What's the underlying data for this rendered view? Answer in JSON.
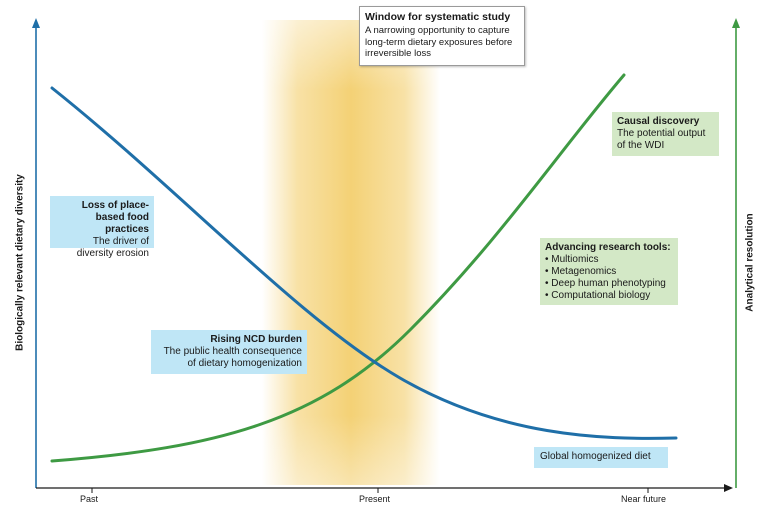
{
  "axes": {
    "y_left_label": "Biologically relevant dietary diversity",
    "y_right_label": "Analytical resolution",
    "x_ticks": [
      "Past",
      "Present",
      "Near future"
    ]
  },
  "colors": {
    "blue_curve": "#1f6fa8",
    "green_curve": "#3e9a43",
    "window_band": "#f2c95d",
    "blue_box": "#bfe6f6",
    "green_box": "#d3e8c6"
  },
  "callout": {
    "title": "Window for systematic study",
    "text": "A narrowing opportunity to capture long-term dietary exposures before irreversible loss"
  },
  "boxes": {
    "loss": {
      "title": "Loss of place-based food practices",
      "text": "The driver of diversity erosion"
    },
    "ncd": {
      "title": "Rising NCD burden",
      "text": "The public health consequence of dietary homogenization"
    },
    "causal": {
      "title": "Causal discovery",
      "text": "The potential output of the WDI"
    },
    "tools": {
      "title": "Advancing research tools:",
      "items": [
        "Multiomics",
        "Metagenomics",
        "Deep human phenotyping",
        "Computational biology"
      ]
    },
    "global": {
      "text": "Global homogenized diet"
    }
  }
}
